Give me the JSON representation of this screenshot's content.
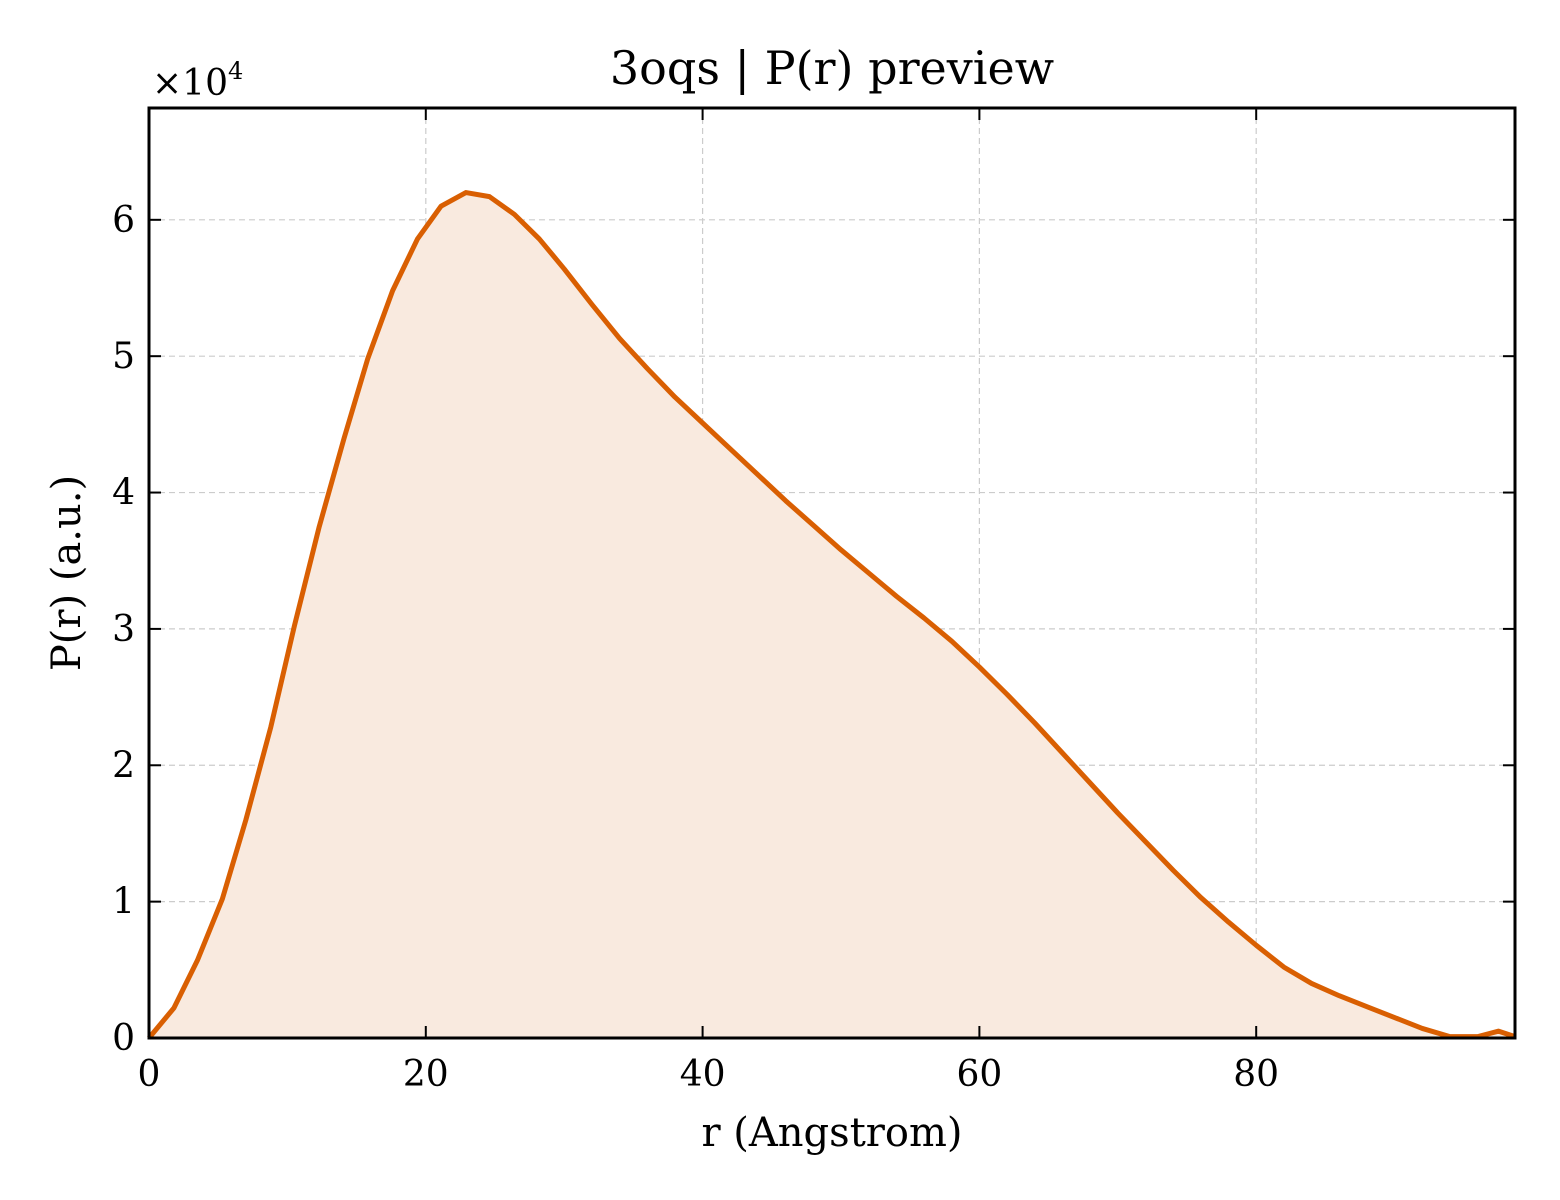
{
  "chart_data": {
    "type": "area",
    "title": "3oqs | P(r) preview",
    "xlabel": "r (Angstrom)",
    "ylabel": "P(r) (a.u.)",
    "y_multiplier_label": "×10",
    "y_multiplier_exponent": "4",
    "xlim": [
      0,
      98.7
    ],
    "ylim": [
      0,
      6.82
    ],
    "x_ticks": [
      0,
      20,
      40,
      60,
      80
    ],
    "x_tick_labels": [
      "0",
      "20",
      "40",
      "60",
      "80"
    ],
    "y_ticks": [
      0,
      1,
      2,
      3,
      4,
      5,
      6
    ],
    "y_tick_labels": [
      "0",
      "1",
      "2",
      "3",
      "4",
      "5",
      "6"
    ],
    "grid": true,
    "line_color": "#d95f02",
    "fill_color": "#f9eadf",
    "series": [
      {
        "x": [
          0,
          1.8,
          3.5,
          5.3,
          7.0,
          8.8,
          10.5,
          12.3,
          14.1,
          15.8,
          17.6,
          19.4,
          21.1,
          22.9,
          24.6,
          26.4,
          28.2,
          30.0,
          32.0,
          34.0,
          36.0,
          38.0,
          40.0,
          42.0,
          44.0,
          46.0,
          48.0,
          50.0,
          52.0,
          54.0,
          56.0,
          58.0,
          60.0,
          62.0,
          64.0,
          66.0,
          68.0,
          70.0,
          72.0,
          74.0,
          76.0,
          78.0,
          80.0,
          82.0,
          84.0,
          86.0,
          88.0,
          90.0,
          92.0,
          94.0,
          96.0,
          97.5,
          98.7
        ],
        "y": [
          0.0,
          0.22,
          0.57,
          1.02,
          1.6,
          2.28,
          3.02,
          3.75,
          4.4,
          4.98,
          5.48,
          5.86,
          6.1,
          6.2,
          6.17,
          6.04,
          5.86,
          5.64,
          5.38,
          5.13,
          4.91,
          4.7,
          4.51,
          4.32,
          4.13,
          3.94,
          3.76,
          3.58,
          3.41,
          3.24,
          3.08,
          2.91,
          2.72,
          2.52,
          2.31,
          2.09,
          1.87,
          1.65,
          1.44,
          1.23,
          1.03,
          0.85,
          0.68,
          0.52,
          0.4,
          0.31,
          0.23,
          0.15,
          0.07,
          0.01,
          0.01,
          0.05,
          0.01
        ]
      }
    ]
  }
}
